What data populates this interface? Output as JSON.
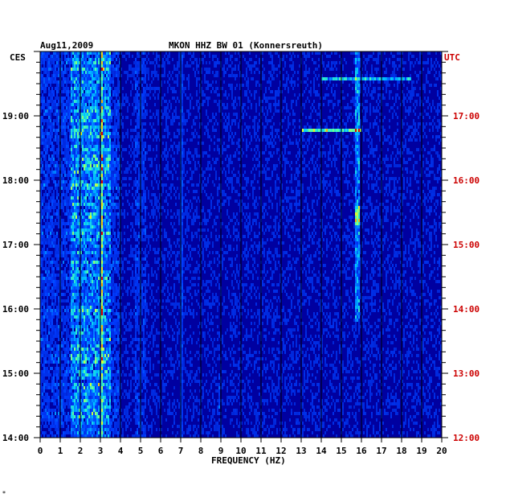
{
  "header": {
    "date": "Aug11,2009",
    "station": "MKON HHZ BW 01 (Konnersreuth)",
    "left_zone": "CES",
    "right_zone": "UTC",
    "corner_mark": "*"
  },
  "colors": {
    "background": "#0000a0",
    "left_labels": "#000000",
    "right_labels": "#cc0000",
    "grid": "#000000"
  },
  "chart_data": {
    "type": "heatmap",
    "title": "MKON HHZ BW 01 (Konnersreuth)",
    "date": "Aug11,2009",
    "xlabel": "FREQUENCY (HZ)",
    "xlim": [
      0,
      20
    ],
    "x_ticks": [
      "0",
      "1",
      "2",
      "3",
      "4",
      "5",
      "6",
      "7",
      "8",
      "9",
      "10",
      "11",
      "12",
      "13",
      "14",
      "15",
      "16",
      "17",
      "18",
      "19",
      "20"
    ],
    "left_axis": {
      "zone": "CES",
      "ticks": [
        "19:00",
        "18:00",
        "17:00",
        "16:00",
        "15:00",
        "14:00"
      ],
      "range_hours": [
        14.0,
        20.0
      ]
    },
    "right_axis": {
      "zone": "UTC",
      "ticks": [
        "17:00",
        "16:00",
        "15:00",
        "14:00",
        "13:00",
        "12:00"
      ],
      "range_hours": [
        12.0,
        18.0
      ]
    },
    "features": [
      {
        "desc": "broad energy band",
        "freq_range": [
          0,
          4
        ],
        "time_ces": [
          14.0,
          20.0
        ]
      },
      {
        "desc": "strong hot band",
        "freq_range": [
          1.5,
          3.5
        ],
        "time_ces": [
          14.0,
          20.0
        ]
      },
      {
        "desc": "narrow line",
        "freq": 3.1,
        "time_ces": [
          14.0,
          20.0
        ]
      },
      {
        "desc": "narrow line",
        "freq": 15.8,
        "time_ces": [
          15.8,
          19.9
        ]
      },
      {
        "desc": "horizontal streak",
        "freq_range": [
          13,
          16
        ],
        "time_ces": 18.76
      },
      {
        "desc": "horizontal streak",
        "freq_range": [
          14,
          18.5
        ],
        "time_ces": 19.57
      }
    ]
  }
}
